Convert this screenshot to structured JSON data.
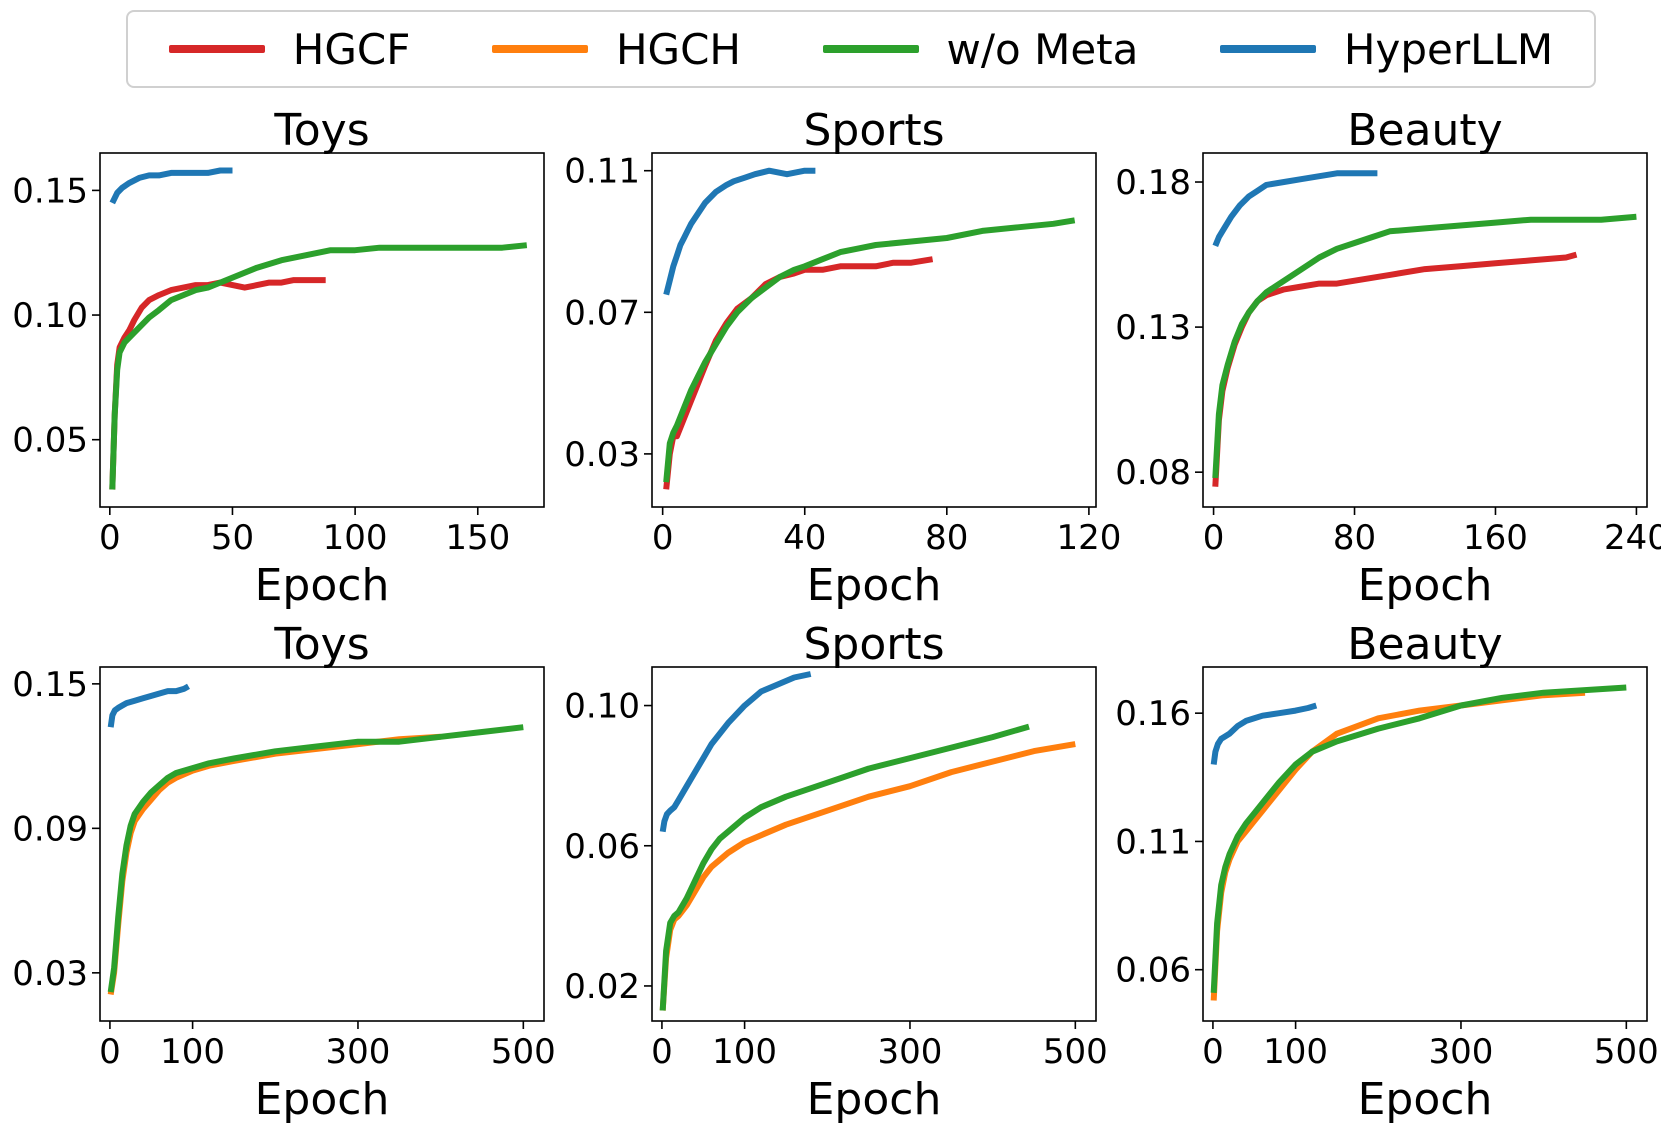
{
  "legend": [
    {
      "name": "HGCF",
      "color": "#d62728"
    },
    {
      "name": "HGCH",
      "color": "#ff7f0e"
    },
    {
      "name": "w/o Meta",
      "color": "#2ca02c"
    },
    {
      "name": "HyperLLM",
      "color": "#1f77b4"
    }
  ],
  "chart_data": [
    {
      "type": "line",
      "title": "Toys",
      "xlabel": "Epoch",
      "ylabel": "",
      "xlim": [
        -4,
        177
      ],
      "ylim": [
        0.023,
        0.165
      ],
      "xticks": [
        0,
        50,
        100,
        150
      ],
      "yticks": [
        0.05,
        0.1,
        0.15
      ],
      "ytick_labels": [
        "0.05",
        "0.10",
        "0.15"
      ],
      "series": [
        {
          "name": "HGCF",
          "color": "#d62728",
          "x": [
            1,
            2,
            3,
            4,
            6,
            8,
            10,
            13,
            16,
            20,
            25,
            30,
            35,
            40,
            45,
            50,
            55,
            60,
            65,
            70,
            75,
            80,
            85,
            88
          ],
          "y": [
            0.03,
            0.06,
            0.08,
            0.087,
            0.091,
            0.094,
            0.098,
            0.103,
            0.106,
            0.108,
            0.11,
            0.111,
            0.112,
            0.112,
            0.113,
            0.112,
            0.111,
            0.112,
            0.113,
            0.113,
            0.114,
            0.114,
            0.114,
            0.114
          ]
        },
        {
          "name": "w/o Meta",
          "color": "#2ca02c",
          "x": [
            1,
            2,
            3,
            4,
            6,
            8,
            10,
            13,
            16,
            20,
            25,
            30,
            35,
            40,
            50,
            60,
            70,
            80,
            90,
            100,
            110,
            120,
            130,
            140,
            150,
            160,
            170
          ],
          "y": [
            0.03,
            0.06,
            0.078,
            0.085,
            0.089,
            0.091,
            0.093,
            0.096,
            0.099,
            0.102,
            0.106,
            0.108,
            0.11,
            0.111,
            0.115,
            0.119,
            0.122,
            0.124,
            0.126,
            0.126,
            0.127,
            0.127,
            0.127,
            0.127,
            0.127,
            0.127,
            0.128
          ]
        },
        {
          "name": "HyperLLM",
          "color": "#1f77b4",
          "x": [
            1,
            3,
            5,
            8,
            12,
            16,
            20,
            25,
            30,
            35,
            40,
            45,
            50
          ],
          "y": [
            0.145,
            0.149,
            0.151,
            0.153,
            0.155,
            0.156,
            0.156,
            0.157,
            0.157,
            0.157,
            0.157,
            0.158,
            0.158
          ]
        }
      ]
    },
    {
      "type": "line",
      "title": "Sports",
      "xlabel": "Epoch",
      "ylabel": "",
      "xlim": [
        -3,
        122
      ],
      "ylim": [
        0.015,
        0.115
      ],
      "xticks": [
        0,
        40,
        80,
        120
      ],
      "yticks": [
        0.03,
        0.07,
        0.11
      ],
      "ytick_labels": [
        "0.03",
        "0.07",
        "0.11"
      ],
      "series": [
        {
          "name": "HGCF",
          "color": "#d62728",
          "x": [
            1,
            2,
            3,
            4,
            6,
            8,
            10,
            12,
            15,
            18,
            21,
            25,
            29,
            33,
            37,
            40,
            45,
            50,
            55,
            60,
            65,
            70,
            76
          ],
          "y": [
            0.02,
            0.03,
            0.035,
            0.035,
            0.04,
            0.045,
            0.05,
            0.055,
            0.062,
            0.067,
            0.071,
            0.074,
            0.078,
            0.08,
            0.081,
            0.082,
            0.082,
            0.083,
            0.083,
            0.083,
            0.084,
            0.084,
            0.085
          ]
        },
        {
          "name": "w/o Meta",
          "color": "#2ca02c",
          "x": [
            1,
            2,
            3,
            4,
            6,
            8,
            10,
            12,
            15,
            18,
            21,
            25,
            29,
            33,
            37,
            40,
            45,
            50,
            55,
            60,
            70,
            80,
            90,
            100,
            110,
            116
          ],
          "y": [
            0.022,
            0.033,
            0.036,
            0.038,
            0.043,
            0.048,
            0.052,
            0.056,
            0.061,
            0.066,
            0.07,
            0.074,
            0.077,
            0.08,
            0.082,
            0.083,
            0.085,
            0.087,
            0.088,
            0.089,
            0.09,
            0.091,
            0.093,
            0.094,
            0.095,
            0.096
          ]
        },
        {
          "name": "HyperLLM",
          "color": "#1f77b4",
          "x": [
            1,
            2,
            3,
            4,
            5,
            6,
            7,
            8,
            10,
            12,
            15,
            18,
            20,
            23,
            26,
            30,
            35,
            40,
            43
          ],
          "y": [
            0.075,
            0.079,
            0.083,
            0.086,
            0.089,
            0.091,
            0.093,
            0.095,
            0.098,
            0.101,
            0.104,
            0.106,
            0.107,
            0.108,
            0.109,
            0.11,
            0.109,
            0.11,
            0.11
          ]
        }
      ]
    },
    {
      "type": "line",
      "title": "Beauty",
      "xlabel": "Epoch",
      "ylabel": "",
      "xlim": [
        -6,
        246
      ],
      "ylim": [
        0.068,
        0.19
      ],
      "xticks": [
        0,
        80,
        160,
        240
      ],
      "yticks": [
        0.08,
        0.13,
        0.18
      ],
      "ytick_labels": [
        "0.08",
        "0.13",
        "0.18"
      ],
      "series": [
        {
          "name": "HGCF",
          "color": "#d62728",
          "x": [
            1,
            3,
            5,
            8,
            12,
            16,
            20,
            25,
            30,
            35,
            40,
            50,
            60,
            70,
            80,
            100,
            120,
            140,
            160,
            180,
            200,
            206
          ],
          "y": [
            0.075,
            0.098,
            0.108,
            0.116,
            0.124,
            0.13,
            0.135,
            0.139,
            0.141,
            0.142,
            0.143,
            0.144,
            0.145,
            0.145,
            0.146,
            0.148,
            0.15,
            0.151,
            0.152,
            0.153,
            0.154,
            0.155
          ]
        },
        {
          "name": "w/o Meta",
          "color": "#2ca02c",
          "x": [
            1,
            3,
            5,
            8,
            12,
            16,
            20,
            25,
            30,
            35,
            40,
            50,
            60,
            70,
            80,
            90,
            100,
            120,
            140,
            160,
            180,
            200,
            220,
            240
          ],
          "y": [
            0.078,
            0.1,
            0.11,
            0.117,
            0.125,
            0.131,
            0.135,
            0.139,
            0.142,
            0.144,
            0.146,
            0.15,
            0.154,
            0.157,
            0.159,
            0.161,
            0.163,
            0.164,
            0.165,
            0.166,
            0.167,
            0.167,
            0.167,
            0.168
          ]
        },
        {
          "name": "HyperLLM",
          "color": "#1f77b4",
          "x": [
            1,
            3,
            6,
            10,
            15,
            20,
            25,
            30,
            40,
            50,
            60,
            70,
            80,
            90,
            93
          ],
          "y": [
            0.158,
            0.161,
            0.164,
            0.168,
            0.172,
            0.175,
            0.177,
            0.179,
            0.18,
            0.181,
            0.182,
            0.183,
            0.183,
            0.183,
            0.183
          ]
        }
      ]
    },
    {
      "type": "line",
      "title": "Toys",
      "xlabel": "Epoch",
      "ylabel": "",
      "xlim": [
        -12,
        525
      ],
      "ylim": [
        0.01,
        0.157
      ],
      "xticks": [
        0,
        100,
        300,
        500
      ],
      "yticks": [
        0.03,
        0.09,
        0.15
      ],
      "ytick_labels": [
        "0.03",
        "0.09",
        "0.15"
      ],
      "series": [
        {
          "name": "HGCH",
          "color": "#ff7f0e",
          "x": [
            1,
            5,
            10,
            15,
            20,
            25,
            30,
            40,
            50,
            60,
            70,
            80,
            100,
            120,
            150,
            200,
            250,
            300,
            350,
            400
          ],
          "y": [
            0.021,
            0.03,
            0.05,
            0.068,
            0.08,
            0.088,
            0.093,
            0.098,
            0.102,
            0.106,
            0.109,
            0.111,
            0.114,
            0.116,
            0.118,
            0.121,
            0.123,
            0.125,
            0.127,
            0.128
          ]
        },
        {
          "name": "w/o Meta",
          "color": "#2ca02c",
          "x": [
            1,
            5,
            10,
            15,
            20,
            25,
            30,
            40,
            50,
            60,
            70,
            80,
            100,
            120,
            150,
            200,
            250,
            300,
            350,
            400,
            450,
            500
          ],
          "y": [
            0.022,
            0.032,
            0.053,
            0.071,
            0.083,
            0.091,
            0.096,
            0.101,
            0.105,
            0.108,
            0.111,
            0.113,
            0.115,
            0.117,
            0.119,
            0.122,
            0.124,
            0.126,
            0.126,
            0.128,
            0.13,
            0.132
          ]
        },
        {
          "name": "HyperLLM",
          "color": "#1f77b4",
          "x": [
            1,
            3,
            6,
            10,
            15,
            20,
            30,
            40,
            50,
            60,
            70,
            80,
            90,
            95
          ],
          "y": [
            0.132,
            0.137,
            0.139,
            0.14,
            0.141,
            0.142,
            0.143,
            0.144,
            0.145,
            0.146,
            0.147,
            0.147,
            0.148,
            0.149
          ]
        }
      ]
    },
    {
      "type": "line",
      "title": "Sports",
      "xlabel": "Epoch",
      "ylabel": "",
      "xlim": [
        -12,
        525
      ],
      "ylim": [
        0.01,
        0.111
      ],
      "xticks": [
        0,
        100,
        300,
        500
      ],
      "yticks": [
        0.02,
        0.06,
        0.1
      ],
      "ytick_labels": [
        "0.02",
        "0.06",
        "0.10"
      ],
      "series": [
        {
          "name": "HGCH",
          "color": "#ff7f0e",
          "x": [
            1,
            5,
            10,
            15,
            20,
            30,
            40,
            50,
            60,
            70,
            80,
            100,
            120,
            150,
            200,
            250,
            300,
            350,
            400,
            450,
            500
          ],
          "y": [
            0.013,
            0.028,
            0.036,
            0.039,
            0.04,
            0.043,
            0.047,
            0.051,
            0.054,
            0.056,
            0.058,
            0.061,
            0.063,
            0.066,
            0.07,
            0.074,
            0.077,
            0.081,
            0.084,
            0.087,
            0.089
          ]
        },
        {
          "name": "w/o Meta",
          "color": "#2ca02c",
          "x": [
            1,
            5,
            10,
            15,
            20,
            30,
            40,
            50,
            60,
            70,
            80,
            100,
            120,
            150,
            200,
            250,
            300,
            350,
            400,
            444
          ],
          "y": [
            0.013,
            0.03,
            0.038,
            0.04,
            0.041,
            0.045,
            0.05,
            0.055,
            0.059,
            0.062,
            0.064,
            0.068,
            0.071,
            0.074,
            0.078,
            0.082,
            0.085,
            0.088,
            0.091,
            0.094
          ]
        },
        {
          "name": "HyperLLM",
          "color": "#1f77b4",
          "x": [
            1,
            3,
            6,
            10,
            15,
            20,
            30,
            40,
            50,
            60,
            80,
            100,
            120,
            140,
            160,
            180
          ],
          "y": [
            0.064,
            0.067,
            0.069,
            0.07,
            0.071,
            0.073,
            0.077,
            0.081,
            0.085,
            0.089,
            0.095,
            0.1,
            0.104,
            0.106,
            0.108,
            0.109
          ]
        }
      ]
    },
    {
      "type": "line",
      "title": "Beauty",
      "xlabel": "Epoch",
      "ylabel": "",
      "xlim": [
        -12,
        525
      ],
      "ylim": [
        0.04,
        0.178
      ],
      "xticks": [
        0,
        100,
        300,
        500
      ],
      "yticks": [
        0.06,
        0.11,
        0.16
      ],
      "ytick_labels": [
        "0.06",
        "0.11",
        "0.16"
      ],
      "series": [
        {
          "name": "HGCH",
          "color": "#ff7f0e",
          "x": [
            1,
            5,
            10,
            15,
            20,
            30,
            40,
            50,
            60,
            80,
            100,
            120,
            150,
            200,
            250,
            300,
            350,
            400,
            450
          ],
          "y": [
            0.048,
            0.075,
            0.09,
            0.098,
            0.103,
            0.11,
            0.114,
            0.118,
            0.122,
            0.13,
            0.138,
            0.145,
            0.152,
            0.158,
            0.161,
            0.163,
            0.165,
            0.167,
            0.168
          ]
        },
        {
          "name": "w/o Meta",
          "color": "#2ca02c",
          "x": [
            1,
            5,
            10,
            15,
            20,
            30,
            40,
            50,
            60,
            80,
            100,
            120,
            150,
            200,
            250,
            300,
            350,
            400,
            450,
            500
          ],
          "y": [
            0.051,
            0.078,
            0.093,
            0.1,
            0.105,
            0.112,
            0.117,
            0.121,
            0.125,
            0.133,
            0.14,
            0.145,
            0.149,
            0.154,
            0.158,
            0.163,
            0.166,
            0.168,
            0.169,
            0.17
          ]
        },
        {
          "name": "HyperLLM",
          "color": "#1f77b4",
          "x": [
            1,
            3,
            6,
            10,
            15,
            20,
            30,
            40,
            50,
            60,
            80,
            100,
            115,
            125
          ],
          "y": [
            0.14,
            0.145,
            0.148,
            0.15,
            0.151,
            0.152,
            0.155,
            0.157,
            0.158,
            0.159,
            0.16,
            0.161,
            0.162,
            0.163
          ]
        }
      ]
    }
  ]
}
